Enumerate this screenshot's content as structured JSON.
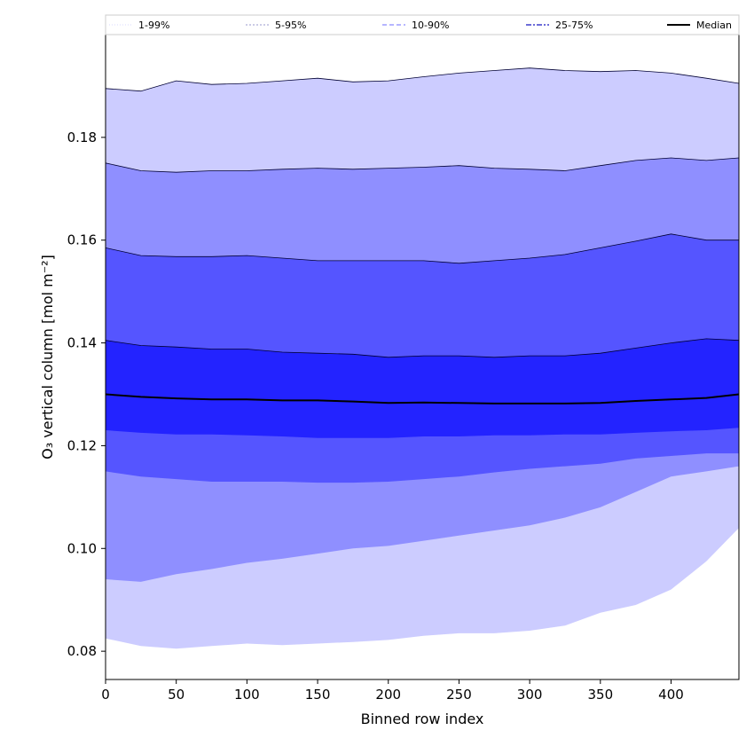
{
  "chart_data": {
    "type": "area",
    "xlabel": "Binned row index",
    "ylabel": "O₃ vertical column [mol m⁻²]",
    "xlim": [
      0,
      448
    ],
    "ylim": [
      0.0745,
      0.2
    ],
    "xticks": [
      0,
      50,
      100,
      150,
      200,
      250,
      300,
      350,
      400
    ],
    "yticks": [
      0.08,
      0.1,
      0.12,
      0.14,
      0.16,
      0.18
    ],
    "grid": false,
    "legend_position": "top",
    "x": [
      0,
      25,
      50,
      75,
      100,
      125,
      150,
      175,
      200,
      225,
      250,
      275,
      300,
      325,
      350,
      375,
      400,
      425,
      448
    ],
    "bands": [
      {
        "name": "1-99%",
        "color": "#ccccff",
        "lower": [
          0.0825,
          0.081,
          0.0805,
          0.081,
          0.0815,
          0.0812,
          0.0815,
          0.0818,
          0.0822,
          0.083,
          0.0835,
          0.0835,
          0.084,
          0.085,
          0.0875,
          0.089,
          0.092,
          0.0975,
          0.104
        ],
        "upper": [
          0.1895,
          0.189,
          0.191,
          0.1903,
          0.1905,
          0.191,
          0.1915,
          0.1908,
          0.191,
          0.1918,
          0.1925,
          0.193,
          0.1935,
          0.193,
          0.1928,
          0.193,
          0.1925,
          0.1915,
          0.1905
        ]
      },
      {
        "name": "5-95%",
        "color": "#8f8fff",
        "lower": [
          0.094,
          0.0935,
          0.095,
          0.096,
          0.0972,
          0.098,
          0.099,
          0.1,
          0.1005,
          0.1015,
          0.1025,
          0.1035,
          0.1045,
          0.106,
          0.108,
          0.111,
          0.114,
          0.115,
          0.116
        ],
        "upper": [
          0.175,
          0.1735,
          0.1732,
          0.1735,
          0.1735,
          0.1738,
          0.174,
          0.1738,
          0.174,
          0.1742,
          0.1745,
          0.174,
          0.1738,
          0.1735,
          0.1745,
          0.1755,
          0.176,
          0.1755,
          0.176
        ]
      },
      {
        "name": "10-90%",
        "color": "#5555ff",
        "lower": [
          0.115,
          0.114,
          0.1135,
          0.113,
          0.113,
          0.113,
          0.1128,
          0.1128,
          0.113,
          0.1135,
          0.114,
          0.1148,
          0.1155,
          0.116,
          0.1165,
          0.1175,
          0.118,
          0.1185,
          0.1185
        ],
        "upper": [
          0.1585,
          0.157,
          0.1568,
          0.1568,
          0.157,
          0.1565,
          0.156,
          0.156,
          0.156,
          0.156,
          0.1555,
          0.156,
          0.1565,
          0.1572,
          0.1585,
          0.1598,
          0.1612,
          0.16,
          0.16
        ]
      },
      {
        "name": "25-75%",
        "color": "#2323ff",
        "lower": [
          0.123,
          0.1225,
          0.1222,
          0.1222,
          0.122,
          0.1218,
          0.1215,
          0.1215,
          0.1215,
          0.1218,
          0.1218,
          0.122,
          0.122,
          0.1222,
          0.1222,
          0.1225,
          0.1228,
          0.123,
          0.1235
        ],
        "upper": [
          0.1405,
          0.1395,
          0.1392,
          0.1388,
          0.1388,
          0.1382,
          0.138,
          0.1378,
          0.1372,
          0.1375,
          0.1375,
          0.1372,
          0.1375,
          0.1375,
          0.138,
          0.139,
          0.14,
          0.1408,
          0.1405
        ]
      }
    ],
    "median": {
      "name": "Median",
      "color": "#000000",
      "values": [
        0.13,
        0.1295,
        0.1292,
        0.129,
        0.129,
        0.1288,
        0.1288,
        0.1286,
        0.1283,
        0.1284,
        0.1283,
        0.1282,
        0.1282,
        0.1282,
        0.1283,
        0.1287,
        0.129,
        0.1293,
        0.13
      ]
    },
    "legend": [
      {
        "label": "1-99%",
        "color": "#d9d9ff",
        "dash": "1,2",
        "width": 1
      },
      {
        "label": "5-95%",
        "color": "#9a9acc",
        "dash": "2,2",
        "width": 1
      },
      {
        "label": "10-90%",
        "color": "#8a8aff",
        "dash": "5,3",
        "width": 1.2
      },
      {
        "label": "25-75%",
        "color": "#3d3dcc",
        "dash": "6,2,2,2",
        "width": 1.4
      },
      {
        "label": "Median",
        "color": "#000000",
        "dash": "",
        "width": 2
      }
    ]
  }
}
